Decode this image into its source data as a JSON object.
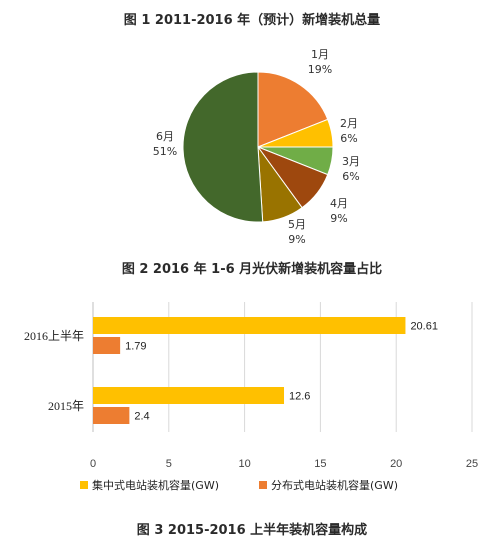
{
  "captions": {
    "fig1": "图 1  2011-2016 年（预计）新增装机总量",
    "fig2": "图 2  2016 年 1-6 月光伏新增装机容量占比",
    "fig3": "图 3  2015-2016 上半年装机容量构成"
  },
  "chart_data": [
    {
      "type": "pie",
      "slices": [
        {
          "label": "1月",
          "value": 19,
          "pct": "19%",
          "color": "#ED7D31"
        },
        {
          "label": "2月",
          "value": 6,
          "pct": "6%",
          "color": "#FFC000"
        },
        {
          "label": "3月",
          "value": 6,
          "pct": "6%",
          "color": "#70AD47"
        },
        {
          "label": "4月",
          "value": 9,
          "pct": "9%",
          "color": "#9E480E"
        },
        {
          "label": "5月",
          "value": 9,
          "pct": "9%",
          "color": "#997300"
        },
        {
          "label": "6月",
          "value": 51,
          "pct": "51%",
          "color": "#43682B"
        }
      ]
    },
    {
      "type": "bar",
      "orientation": "horizontal",
      "categories": [
        "2016上半年",
        "2015年"
      ],
      "series": [
        {
          "name": "集中式电站装机容量(GW)",
          "values": [
            20.61,
            12.6
          ],
          "labels": [
            "20.61",
            "12.6"
          ],
          "color": "#FFC000"
        },
        {
          "name": "分布式电站装机容量(GW)",
          "values": [
            1.79,
            2.4
          ],
          "labels": [
            "1.79",
            "2.4"
          ],
          "color": "#ED7D31"
        }
      ],
      "xlim": [
        0,
        25
      ],
      "xticks": [
        "0",
        "5",
        "10",
        "15",
        "20",
        "25"
      ],
      "grid": true,
      "legend": "bottom"
    }
  ]
}
